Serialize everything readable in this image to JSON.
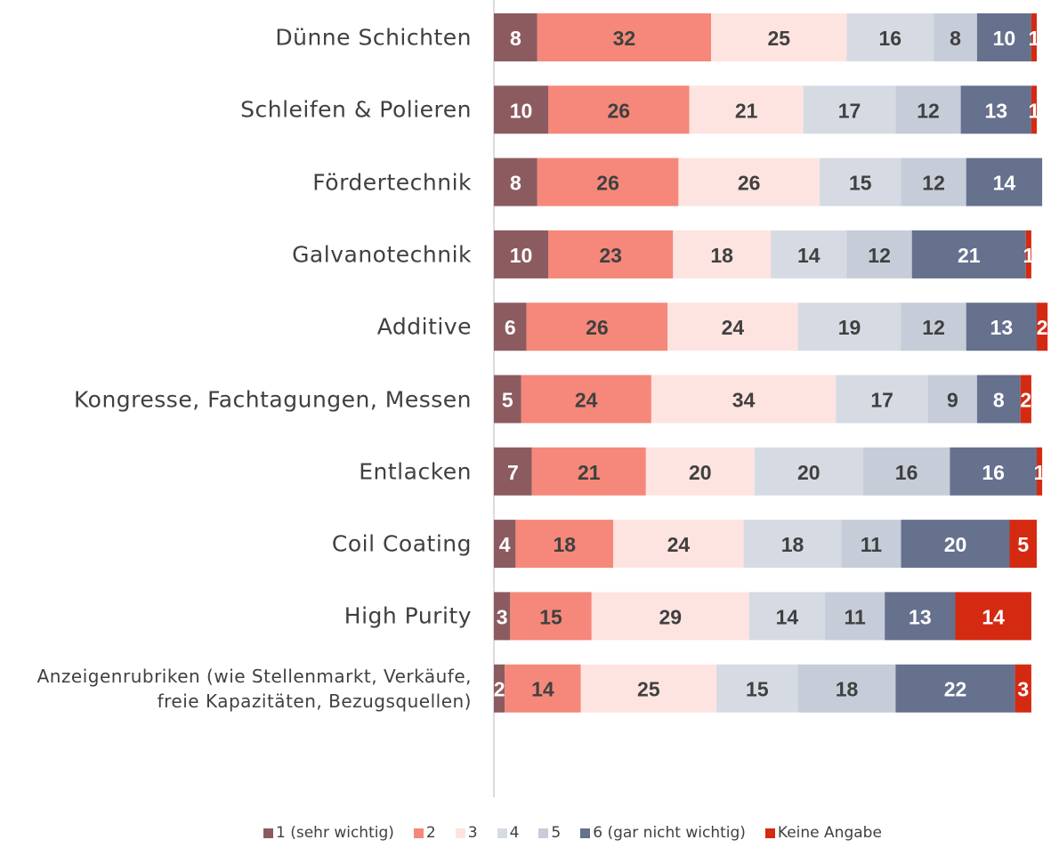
{
  "chart_data": {
    "type": "stacked-bar",
    "categories": [
      "Dünne Schichten",
      "Schleifen & Polieren",
      "Fördertechnik",
      "Galvanotechnik",
      "Additive",
      "Kongresse, Fachtagungen, Messen",
      "Entlacken",
      "Coil Coating",
      "High Purity",
      "Anzeigenrubriken (wie Stellenmarkt, Verkäufe, freie Kapazitäten, Bezugsquellen)"
    ],
    "series": [
      {
        "name": "1 (sehr wichtig)",
        "color": "#8c5b60",
        "values": [
          8,
          10,
          8,
          10,
          6,
          5,
          7,
          4,
          3,
          2
        ]
      },
      {
        "name": "2",
        "color": "#f5887a",
        "values": [
          32,
          26,
          26,
          23,
          26,
          24,
          21,
          18,
          15,
          14
        ]
      },
      {
        "name": "3",
        "color": "#fde4e0",
        "values": [
          25,
          21,
          26,
          18,
          24,
          34,
          20,
          24,
          29,
          25
        ]
      },
      {
        "name": "4",
        "color": "#d6dbe3",
        "values": [
          16,
          17,
          15,
          14,
          19,
          17,
          20,
          18,
          14,
          15
        ]
      },
      {
        "name": "5",
        "color": "#c6cdd9",
        "values": [
          8,
          12,
          12,
          12,
          12,
          9,
          16,
          11,
          11,
          18
        ]
      },
      {
        "name": "6 (gar nicht wichtig)",
        "color": "#65718d",
        "values": [
          10,
          13,
          14,
          21,
          13,
          8,
          16,
          20,
          13,
          22
        ]
      },
      {
        "name": "Keine Angabe",
        "color": "#d52a12",
        "values": [
          1,
          1,
          null,
          1,
          2,
          2,
          1,
          5,
          14,
          3
        ]
      }
    ]
  }
}
